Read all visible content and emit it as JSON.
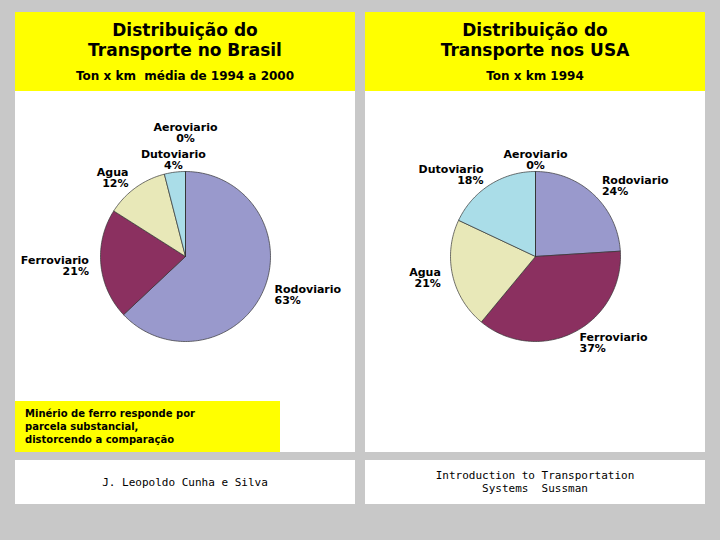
{
  "chart_data": [
    {
      "type": "pie",
      "title": "Distribuição do\nTransporte no Brasil",
      "subtitle": "Ton x km  média de 1994 a 2000",
      "categories": [
        "Rodoviario",
        "Ferroviario",
        "Agua",
        "Dutoviario",
        "Aeroviario"
      ],
      "values": [
        63,
        21,
        12,
        4,
        0
      ],
      "value_labels": [
        "63%",
        "21%",
        "12%",
        "4%",
        "0%"
      ],
      "data_labels": true,
      "colors": [
        "#9999cc",
        "#8b3060",
        "#e8e8b8",
        "#aadde8",
        "#444455"
      ],
      "annotations": [
        "Minério de ferro responde por\nparcela substancial,\ndistorcendo a comparação",
        "J. Leopoldo Cunha e Silva"
      ]
    },
    {
      "type": "pie",
      "title": "Distribuição do\nTransporte nos USA",
      "subtitle": "Ton x km 1994",
      "categories": [
        "Rodoviario",
        "Ferroviario",
        "Agua",
        "Dutoviario",
        "Aeroviario"
      ],
      "values": [
        24,
        37,
        21,
        18,
        0
      ],
      "value_labels": [
        "24%",
        "37%",
        "21%",
        "18%",
        "0%"
      ],
      "data_labels": true,
      "colors": [
        "#9999cc",
        "#8b3060",
        "#e8e8b8",
        "#aadde8",
        "#444455"
      ],
      "annotations": [
        "Introduction to Transportation\nSystems  Sussman"
      ]
    }
  ]
}
